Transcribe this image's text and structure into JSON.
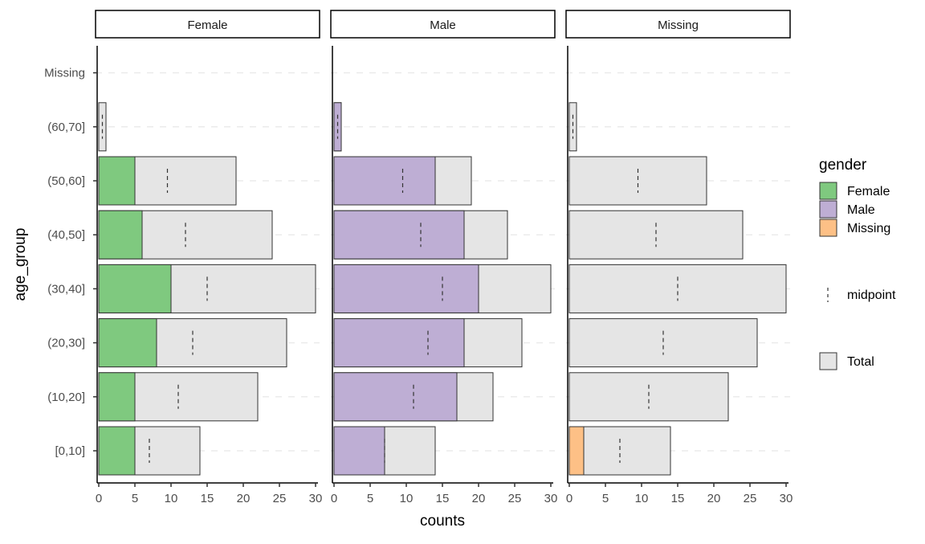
{
  "chart_data": {
    "type": "bar",
    "orientation": "horizontal",
    "xlabel": "counts",
    "ylabel": "age_group",
    "xlim": [
      0,
      30
    ],
    "x_ticks": [
      0,
      5,
      10,
      15,
      20,
      25,
      30
    ],
    "grid": "horizontal dashed",
    "categories": [
      "[0,10]",
      "(10,20]",
      "(20,30]",
      "(30,40]",
      "(40,50]",
      "(50,60]",
      "(60,70]",
      "Missing"
    ],
    "total": [
      14,
      22,
      26,
      30,
      24,
      19,
      1,
      0
    ],
    "midpoint": [
      7,
      11,
      13,
      15,
      12,
      9.5,
      0.5,
      0
    ],
    "facets": [
      {
        "name": "Female",
        "color": "#7FC97F",
        "values": [
          5,
          5,
          8,
          10,
          6,
          5,
          0,
          0
        ]
      },
      {
        "name": "Male",
        "color": "#BEAED4",
        "values": [
          7,
          17,
          18,
          20,
          18,
          14,
          1,
          0
        ]
      },
      {
        "name": "Missing",
        "color": "#FDC086",
        "values": [
          2,
          0,
          0,
          0,
          0,
          0,
          0,
          0
        ]
      }
    ],
    "total_color": "#E5E5E5",
    "legend": {
      "placement": "right",
      "title": "gender",
      "entries": [
        "Female",
        "Male",
        "Missing"
      ],
      "midpoint_label": "midpoint",
      "total_label": "Total"
    }
  }
}
